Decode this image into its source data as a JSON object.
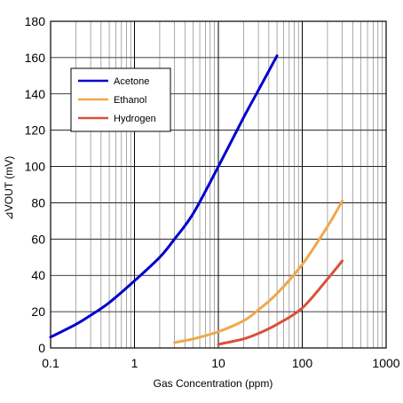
{
  "chart_data": {
    "type": "line",
    "xlabel": "Gas Concentration (ppm)",
    "ylabel": "⊿VOUT (mV)",
    "xscale": "log",
    "xlim": [
      0.1,
      1000
    ],
    "ylim": [
      0,
      180
    ],
    "x_ticks": [
      0.1,
      1,
      10,
      100,
      1000
    ],
    "x_tick_labels": [
      "0.1",
      "1",
      "10",
      "100",
      "1000"
    ],
    "y_ticks": [
      0,
      20,
      40,
      60,
      80,
      100,
      120,
      140,
      160,
      180
    ],
    "y_tick_labels": [
      "0",
      "20",
      "40",
      "60",
      "80",
      "100",
      "120",
      "140",
      "160",
      "180"
    ],
    "grid": true,
    "legend_position": "top-left",
    "series": [
      {
        "name": "Acetone",
        "color": "#0000cc",
        "x": [
          0.1,
          0.2,
          0.3,
          0.5,
          1,
          2,
          3,
          5,
          10,
          20,
          30,
          50
        ],
        "y": [
          6,
          13,
          18,
          25,
          37,
          50,
          60,
          74,
          100,
          127,
          142,
          161
        ]
      },
      {
        "name": "Ethanol",
        "color": "#f0a84a",
        "x": [
          3,
          5,
          10,
          20,
          30,
          50,
          100,
          200,
          300
        ],
        "y": [
          3,
          5,
          9,
          15,
          21,
          30,
          46,
          67,
          81
        ]
      },
      {
        "name": "Hydrogen",
        "color": "#d9513a",
        "x": [
          10,
          20,
          30,
          50,
          100,
          200,
          300
        ],
        "y": [
          2,
          5,
          8,
          13,
          22,
          38,
          48
        ]
      }
    ]
  }
}
